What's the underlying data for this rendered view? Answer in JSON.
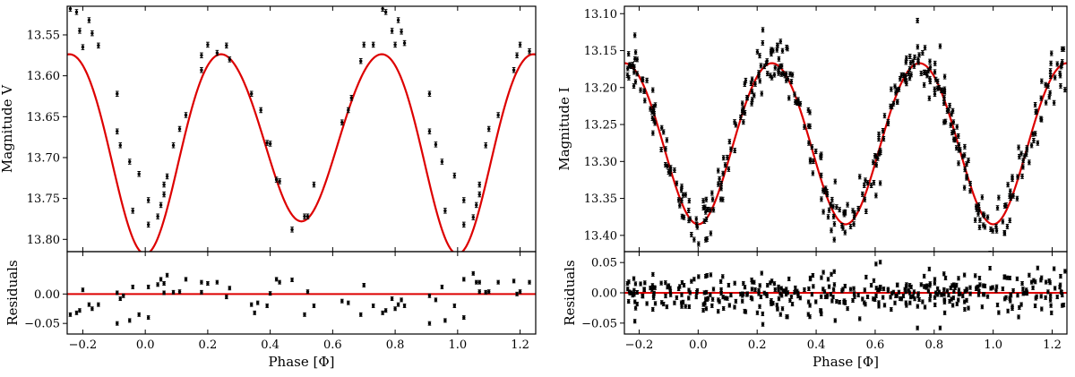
{
  "chart_data": [
    {
      "type": "scatter",
      "panel": "main",
      "xlabel": "",
      "ylabel": "Magnitude V",
      "xlim": [
        -0.25,
        1.25
      ],
      "ylim": [
        13.815,
        13.515
      ],
      "y_inverted": true,
      "xticks": [
        "-0.2",
        "0.0",
        "0.2",
        "0.4",
        "0.6",
        "0.8",
        "1.0",
        "1.2"
      ],
      "yticks": [
        "13.55",
        "13.60",
        "13.65",
        "13.70",
        "13.75",
        "13.80"
      ],
      "marker_color": "#000000",
      "model_color": "#dd0000",
      "error": 0.003,
      "model": {
        "mean": 13.68,
        "a1": 0.011,
        "phi1": 0.0,
        "a2": 0.112,
        "phi2": 0.0,
        "a3": 0.009,
        "phi3": 0.0,
        "a4": 0.006,
        "phi4": 0.0
      },
      "points": [
        [
          -0.24,
          13.518
        ],
        [
          -0.22,
          13.522
        ],
        [
          -0.21,
          13.545
        ],
        [
          -0.2,
          13.565
        ],
        [
          -0.18,
          13.532
        ],
        [
          -0.17,
          13.548
        ],
        [
          -0.15,
          13.563
        ],
        [
          -0.09,
          13.622
        ],
        [
          -0.09,
          13.668
        ],
        [
          -0.08,
          13.685
        ],
        [
          -0.05,
          13.705
        ],
        [
          -0.04,
          13.765
        ],
        [
          -0.02,
          13.72
        ],
        [
          0.01,
          13.782
        ],
        [
          0.01,
          13.752
        ],
        [
          0.04,
          13.772
        ],
        [
          0.05,
          13.758
        ],
        [
          0.06,
          13.745
        ],
        [
          0.06,
          13.733
        ],
        [
          0.07,
          13.723
        ],
        [
          0.09,
          13.685
        ],
        [
          0.11,
          13.665
        ],
        [
          0.13,
          13.648
        ],
        [
          0.18,
          13.593
        ],
        [
          0.18,
          13.575
        ],
        [
          0.2,
          13.562
        ],
        [
          0.23,
          13.572
        ],
        [
          0.26,
          13.563
        ],
        [
          0.27,
          13.58
        ],
        [
          0.34,
          13.622
        ],
        [
          0.37,
          13.642
        ],
        [
          0.39,
          13.682
        ],
        [
          0.4,
          13.683
        ],
        [
          0.42,
          13.727
        ],
        [
          0.43,
          13.729
        ],
        [
          0.47,
          13.788
        ],
        [
          0.51,
          13.772
        ],
        [
          0.52,
          13.772
        ],
        [
          0.54,
          13.733
        ],
        [
          0.63,
          13.657
        ],
        [
          0.65,
          13.642
        ],
        [
          0.66,
          13.627
        ],
        [
          0.69,
          13.582
        ],
        [
          0.7,
          13.562
        ],
        [
          0.73,
          13.562
        ],
        [
          0.76,
          13.518
        ],
        [
          0.77,
          13.522
        ],
        [
          0.79,
          13.545
        ],
        [
          0.8,
          13.562
        ],
        [
          0.81,
          13.532
        ],
        [
          0.82,
          13.546
        ],
        [
          0.83,
          13.56
        ],
        [
          0.91,
          13.622
        ],
        [
          0.91,
          13.668
        ],
        [
          0.93,
          13.684
        ],
        [
          0.95,
          13.705
        ],
        [
          0.96,
          13.765
        ],
        [
          0.99,
          13.722
        ],
        [
          1.02,
          13.782
        ],
        [
          1.02,
          13.752
        ],
        [
          1.05,
          13.773
        ],
        [
          1.06,
          13.758
        ],
        [
          1.07,
          13.745
        ],
        [
          1.07,
          13.733
        ],
        [
          1.09,
          13.685
        ],
        [
          1.1,
          13.665
        ],
        [
          1.13,
          13.648
        ],
        [
          1.18,
          13.593
        ],
        [
          1.19,
          13.575
        ],
        [
          1.2,
          13.562
        ],
        [
          1.23,
          13.57
        ]
      ]
    },
    {
      "type": "scatter",
      "panel": "residuals",
      "xlabel": "Phase [Φ]",
      "ylabel": "Residuals",
      "xlim": [
        -0.25,
        1.25
      ],
      "ylim": [
        -0.068,
        0.072
      ],
      "xticks": [
        "-0.2",
        "0.0",
        "0.2",
        "0.4",
        "0.6",
        "0.8",
        "1.0",
        "1.2"
      ],
      "yticks": [
        "-0.05",
        "0.00"
      ],
      "marker_color": "#000000",
      "zero_line_color": "#dd0000",
      "error": 0.003,
      "points": [
        [
          -0.24,
          -0.035
        ],
        [
          -0.22,
          -0.032
        ],
        [
          -0.21,
          -0.028
        ],
        [
          -0.2,
          0.007
        ],
        [
          -0.18,
          -0.018
        ],
        [
          -0.17,
          -0.025
        ],
        [
          -0.15,
          -0.018
        ],
        [
          -0.09,
          0.002
        ],
        [
          -0.09,
          -0.05
        ],
        [
          -0.08,
          -0.008
        ],
        [
          -0.07,
          -0.003
        ],
        [
          -0.05,
          -0.045
        ],
        [
          -0.04,
          0.012
        ],
        [
          -0.02,
          -0.035
        ],
        [
          0.01,
          0.012
        ],
        [
          0.01,
          -0.04
        ],
        [
          0.04,
          0.016
        ],
        [
          0.05,
          0.025
        ],
        [
          0.06,
          0.002
        ],
        [
          0.06,
          0.018
        ],
        [
          0.07,
          0.032
        ],
        [
          0.09,
          0.003
        ],
        [
          0.11,
          0.004
        ],
        [
          0.13,
          0.025
        ],
        [
          0.18,
          0.02
        ],
        [
          0.18,
          0.003
        ],
        [
          0.2,
          0.018
        ],
        [
          0.23,
          0.02
        ],
        [
          0.26,
          -0.005
        ],
        [
          0.27,
          0.01
        ],
        [
          0.34,
          -0.018
        ],
        [
          0.35,
          -0.032
        ],
        [
          0.36,
          -0.015
        ],
        [
          0.39,
          -0.02
        ],
        [
          0.4,
          0.001
        ],
        [
          0.42,
          0.025
        ],
        [
          0.43,
          0.02
        ],
        [
          0.47,
          0.024
        ],
        [
          0.51,
          -0.035
        ],
        [
          0.52,
          0.004
        ],
        [
          0.54,
          -0.02
        ],
        [
          0.63,
          -0.012
        ],
        [
          0.65,
          -0.015
        ],
        [
          0.69,
          -0.035
        ],
        [
          0.7,
          0.015
        ],
        [
          0.73,
          -0.02
        ],
        [
          0.76,
          -0.032
        ],
        [
          0.77,
          -0.028
        ],
        [
          0.79,
          -0.008
        ],
        [
          0.8,
          -0.025
        ],
        [
          0.81,
          -0.018
        ],
        [
          0.82,
          -0.01
        ],
        [
          0.83,
          -0.02
        ],
        [
          0.91,
          -0.003
        ],
        [
          0.91,
          -0.05
        ],
        [
          0.93,
          -0.01
        ],
        [
          0.95,
          0.012
        ],
        [
          0.96,
          -0.045
        ],
        [
          0.99,
          -0.02
        ],
        [
          1.02,
          0.025
        ],
        [
          1.02,
          -0.04
        ],
        [
          1.05,
          0.035
        ],
        [
          1.06,
          0.02
        ],
        [
          1.07,
          0.004
        ],
        [
          1.07,
          0.02
        ],
        [
          1.09,
          0.003
        ],
        [
          1.1,
          0.004
        ],
        [
          1.13,
          0.02
        ],
        [
          1.18,
          0.022
        ],
        [
          1.19,
          0.0
        ],
        [
          1.2,
          0.004
        ],
        [
          1.23,
          0.02
        ]
      ]
    },
    {
      "type": "scatter",
      "panel": "main",
      "xlabel": "",
      "ylabel": "Magnitude I",
      "xlim": [
        -0.25,
        1.25
      ],
      "ylim": [
        13.422,
        13.09
      ],
      "y_inverted": true,
      "xticks": [
        "-0.2",
        "0.0",
        "0.2",
        "0.4",
        "0.6",
        "0.8",
        "1.0",
        "1.2"
      ],
      "yticks": [
        "13.10",
        "13.15",
        "13.20",
        "13.25",
        "13.30",
        "13.35",
        "13.40"
      ],
      "marker_color": "#000000",
      "model_color": "#dd0000",
      "error": 0.003,
      "n_points": 420,
      "scatter": 0.02,
      "model": {
        "mean": 13.272,
        "a1": 0.0,
        "phi1": 0.0,
        "a2": 0.109,
        "phi2": 0.0,
        "a3": 0.0,
        "phi3": 0.0,
        "a4": 0.004,
        "phi4": 0.0
      }
    },
    {
      "type": "scatter",
      "panel": "residuals",
      "xlabel": "Phase [Φ]",
      "ylabel": "Residuals",
      "xlim": [
        -0.25,
        1.25
      ],
      "ylim": [
        -0.068,
        0.068
      ],
      "xticks": [
        "-0.2",
        "0.0",
        "0.2",
        "0.4",
        "0.6",
        "0.8",
        "1.0",
        "1.2"
      ],
      "yticks": [
        "-0.05",
        "0.00",
        "0.05"
      ],
      "marker_color": "#000000",
      "zero_line_color": "#dd0000",
      "error": 0.003,
      "scatter": 0.02
    }
  ]
}
